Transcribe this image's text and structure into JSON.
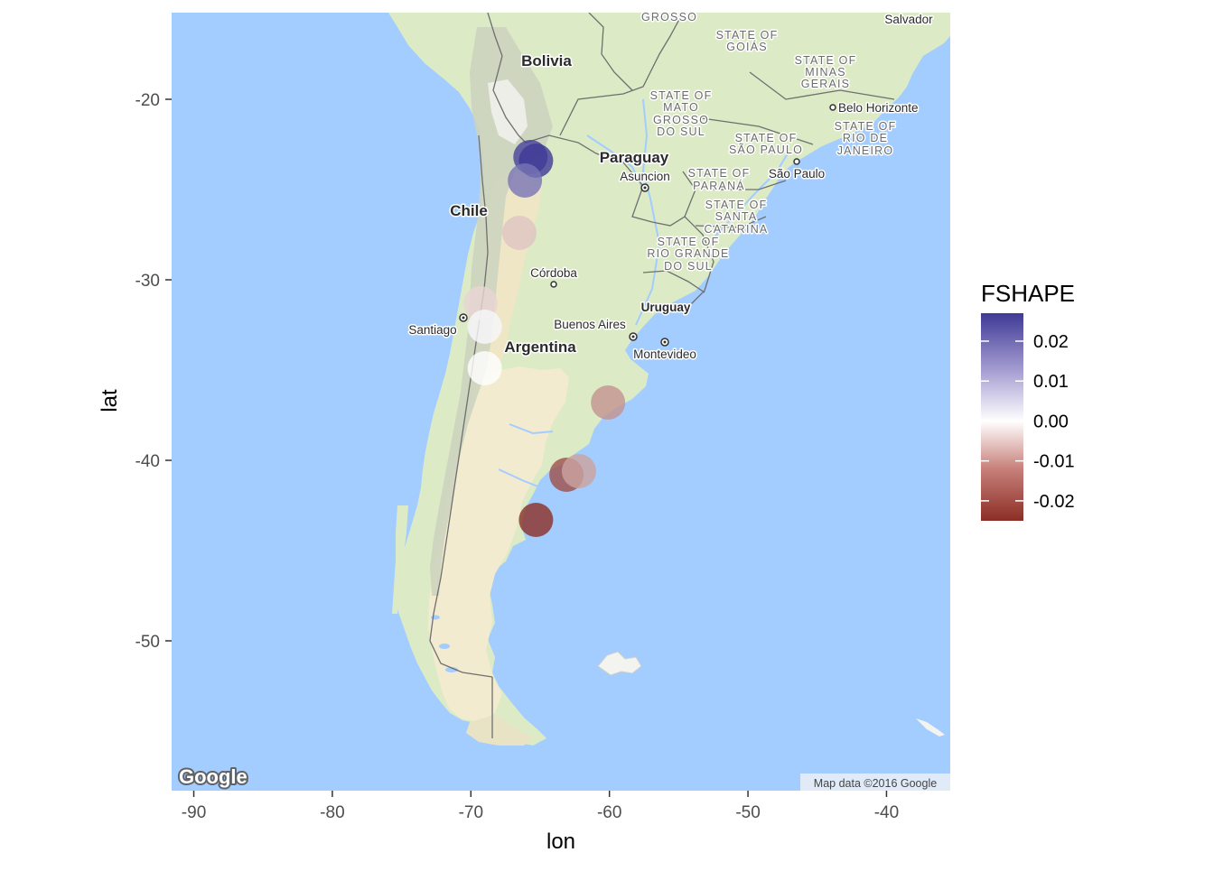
{
  "chart_data": {
    "type": "scatter",
    "xlabel": "lon",
    "ylabel": "lat",
    "xlim": [
      -91.6,
      -35.4
    ],
    "ylim": [
      -58.3,
      -15.2
    ],
    "x_ticks": [
      -90,
      -80,
      -70,
      -60,
      -50,
      -40
    ],
    "y_ticks": [
      -20,
      -30,
      -40,
      -50
    ],
    "legend": {
      "title": "FSHAPE",
      "placement": "right",
      "labels": [
        "0.02",
        "0.01",
        "0.00",
        "-0.01",
        "-0.02"
      ],
      "values": [
        0.02,
        0.01,
        0.0,
        -0.01,
        -0.02
      ],
      "range": [
        -0.025,
        0.027
      ],
      "color_high": "#3f3a96",
      "color_mid": "#ffffff",
      "color_low": "#8b2e25"
    },
    "points": [
      {
        "lon": -65.7,
        "lat": -23.2,
        "fshape": 0.026
      },
      {
        "lon": -65.3,
        "lat": -23.4,
        "fshape": 0.027
      },
      {
        "lon": -66.1,
        "lat": -24.5,
        "fshape": 0.019
      },
      {
        "lon": -66.5,
        "lat": -27.4,
        "fshape": -0.007
      },
      {
        "lon": -69.3,
        "lat": -31.3,
        "fshape": -0.005
      },
      {
        "lon": -69.0,
        "lat": -32.6,
        "fshape": 0.001
      },
      {
        "lon": -69.0,
        "lat": -34.9,
        "fshape": 0.0
      },
      {
        "lon": -60.1,
        "lat": -36.8,
        "fshape": -0.013
      },
      {
        "lon": -63.1,
        "lat": -40.8,
        "fshape": -0.021
      },
      {
        "lon": -62.2,
        "lat": -40.6,
        "fshape": -0.011
      },
      {
        "lon": -65.3,
        "lat": -43.3,
        "fshape": -0.025
      }
    ]
  },
  "map": {
    "country_labels": [
      "Bolivia",
      "Paraguay",
      "Chile",
      "Argentina",
      "Uruguay"
    ],
    "city_labels": [
      "Salvador",
      "Belo Horizonte",
      "São Paulo",
      "Asuncion",
      "Córdoba",
      "Buenos Aires",
      "Santiago",
      "Montevideo"
    ],
    "state_labels": [
      "GROSSO",
      "STATE OF",
      "GOIÁS",
      "STATE OF",
      "MINAS",
      "GERAIS",
      "STATE OF",
      "MATO",
      "GROSSO",
      "DO SUL",
      "STATE OF",
      "RIO DE",
      "JANEIRO",
      "STATE OF",
      "SÃO PAULO",
      "STATE OF",
      "PARANÁ",
      "STATE OF",
      "SANTA",
      "CATARINA",
      "STATE OF",
      "RIO GRANDE",
      "DO SUL"
    ],
    "logo_text": "Google",
    "attribution": "Map data ©2016 Google",
    "colors": {
      "ocean": "#a3ccff",
      "land_green": "#dcebc6",
      "land_sand": "#f3ebcf",
      "mountain": "#cfd7c3",
      "snow": "#f6f6f4",
      "border": "#6f6f6f"
    }
  }
}
